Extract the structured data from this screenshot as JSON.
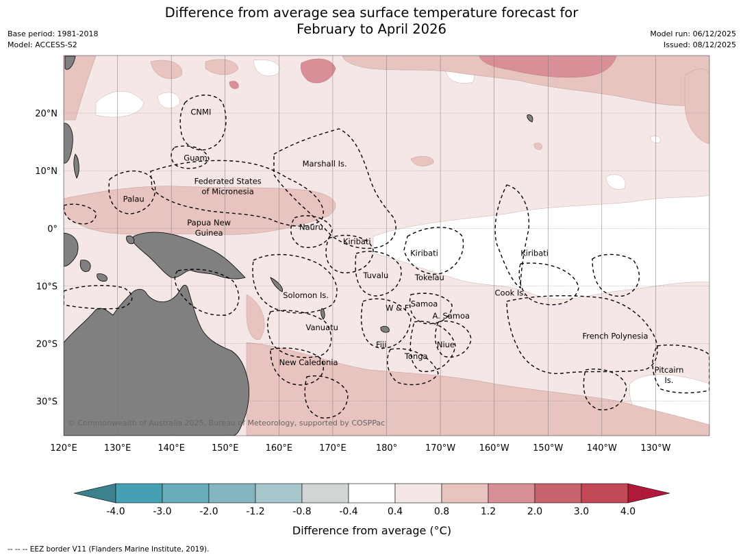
{
  "header": {
    "title_line1": "Difference from average sea surface temperature forecast for",
    "title_line2": "February to April 2026",
    "base_period": "Base period: 1981-2018",
    "model": "Model: ACCESS-S2",
    "model_run": "Model run: 06/12/2025",
    "issued": "Issued: 08/12/2025"
  },
  "map": {
    "lon_range": [
      120,
      240
    ],
    "lat_range": [
      -36,
      30
    ],
    "longitude_ticks": [
      {
        "value": 120,
        "label": "120°E"
      },
      {
        "value": 130,
        "label": "130°E"
      },
      {
        "value": 140,
        "label": "140°E"
      },
      {
        "value": 150,
        "label": "150°E"
      },
      {
        "value": 160,
        "label": "160°E"
      },
      {
        "value": 170,
        "label": "170°E"
      },
      {
        "value": 180,
        "label": "180°"
      },
      {
        "value": 190,
        "label": "170°W"
      },
      {
        "value": 200,
        "label": "160°W"
      },
      {
        "value": 210,
        "label": "150°W"
      },
      {
        "value": 220,
        "label": "140°W"
      },
      {
        "value": 230,
        "label": "130°W"
      }
    ],
    "latitude_ticks": [
      {
        "value": 20,
        "label": "20°N"
      },
      {
        "value": 10,
        "label": "10°N"
      },
      {
        "value": 0,
        "label": "0°"
      },
      {
        "value": -10,
        "label": "10°S"
      },
      {
        "value": -20,
        "label": "20°S"
      },
      {
        "value": -30,
        "label": "30°S"
      }
    ],
    "place_labels": [
      {
        "lines": [
          "CNMI"
        ],
        "lon": 145.5,
        "lat": 20.2
      },
      {
        "lines": [
          "Guam"
        ],
        "lon": 144.5,
        "lat": 12.2
      },
      {
        "lines": [
          "Marshall Is."
        ],
        "lon": 168.5,
        "lat": 11.2
      },
      {
        "lines": [
          "Federated States",
          "of Micronesia"
        ],
        "lon": 150.5,
        "lat": 7.3
      },
      {
        "lines": [
          "Palau"
        ],
        "lon": 133,
        "lat": 5.1
      },
      {
        "lines": [
          "Papua New",
          "Guinea"
        ],
        "lon": 147,
        "lat": 0.1
      },
      {
        "lines": [
          "Nauru"
        ],
        "lon": 166,
        "lat": 0.2
      },
      {
        "lines": [
          "Kiribati"
        ],
        "lon": 174.5,
        "lat": -2.3
      },
      {
        "lines": [
          "Kiribati"
        ],
        "lon": 187,
        "lat": -4.3
      },
      {
        "lines": [
          "Kiribati"
        ],
        "lon": 207.5,
        "lat": -4.3
      },
      {
        "lines": [
          "Tuvalu"
        ],
        "lon": 178,
        "lat": -8.2
      },
      {
        "lines": [
          "Tokelau"
        ],
        "lon": 188,
        "lat": -8.5
      },
      {
        "lines": [
          "Cook Is."
        ],
        "lon": 203,
        "lat": -11.2
      },
      {
        "lines": [
          "Solomon Is."
        ],
        "lon": 165,
        "lat": -11.6
      },
      {
        "lines": [
          "Samoa"
        ],
        "lon": 187,
        "lat": -13.1
      },
      {
        "lines": [
          "W & F"
        ],
        "lon": 182,
        "lat": -13.8
      },
      {
        "lines": [
          "A. Samoa"
        ],
        "lon": 192,
        "lat": -15.2
      },
      {
        "lines": [
          "Vanuatu"
        ],
        "lon": 168,
        "lat": -17.2
      },
      {
        "lines": [
          "French Polynesia"
        ],
        "lon": 222.5,
        "lat": -18.7
      },
      {
        "lines": [
          "Fiji"
        ],
        "lon": 179,
        "lat": -20.2
      },
      {
        "lines": [
          "Niue"
        ],
        "lon": 191,
        "lat": -20.2
      },
      {
        "lines": [
          "Tonga"
        ],
        "lon": 185.5,
        "lat": -22.2
      },
      {
        "lines": [
          "New Caledonia"
        ],
        "lon": 165.5,
        "lat": -23.3
      },
      {
        "lines": [
          "Pitcairn",
          "Is."
        ],
        "lon": 232.5,
        "lat": -25.5
      }
    ],
    "copyright": "© Commonwealth of Australia 2025, Bureau of Meteorology, supported by COSPPac"
  },
  "colorbar": {
    "title": "Difference from average (°C)",
    "tick_labels": [
      "-4.0",
      "-3.0",
      "-2.0",
      "-1.2",
      "-0.8",
      "-0.4",
      "0.4",
      "0.8",
      "1.2",
      "2.0",
      "3.0",
      "4.0"
    ],
    "under_color": "#3d808e",
    "over_color": "#b0193a",
    "bin_colors": [
      "#46a0b3",
      "#69adbd",
      "#86b4c0",
      "#a6c6cb",
      "#d1d5d5",
      "#ffffff",
      "#f5e7e6",
      "#e8c4c0",
      "#d98f98",
      "#c9646f",
      "#c14a56"
    ]
  },
  "footer": {
    "legend": "--  --  -- EEZ border V11 (Flanders Marine Institute, 2019)."
  }
}
